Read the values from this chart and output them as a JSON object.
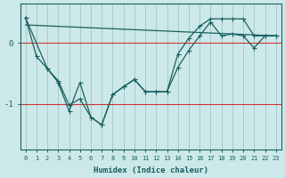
{
  "xlabel": "Humidex (Indice chaleur)",
  "background_color": "#cce8e8",
  "grid_color": "#a8cccc",
  "line_color": "#1a6060",
  "x_ticks": [
    0,
    1,
    2,
    3,
    4,
    5,
    6,
    7,
    8,
    9,
    10,
    11,
    12,
    13,
    14,
    15,
    16,
    17,
    18,
    19,
    20,
    21,
    22,
    23
  ],
  "y_ticks": [
    0,
    -1
  ],
  "ylim": [
    -1.75,
    0.65
  ],
  "xlim": [
    -0.5,
    23.5
  ],
  "line1_x": [
    0,
    1,
    2,
    3,
    4,
    5,
    6,
    7,
    8,
    9,
    10,
    11,
    12,
    13,
    14,
    15,
    16,
    17,
    18,
    19,
    20,
    21,
    22,
    23
  ],
  "line1_y": [
    0.42,
    -0.22,
    -0.42,
    -0.62,
    -1.02,
    -0.92,
    -1.22,
    -1.35,
    -0.85,
    -0.72,
    -0.6,
    -0.8,
    -0.8,
    -0.8,
    -0.4,
    -0.12,
    0.12,
    0.35,
    0.12,
    0.15,
    0.12,
    -0.08,
    0.12,
    0.12
  ],
  "line2_x": [
    0,
    2,
    3,
    4,
    5,
    6,
    7,
    8,
    9,
    10,
    11,
    12,
    13,
    14,
    15,
    16,
    17,
    18,
    19,
    20,
    21,
    22,
    23
  ],
  "line2_y": [
    0.42,
    -0.42,
    -0.65,
    -1.12,
    -0.65,
    -1.22,
    -1.35,
    -0.85,
    -0.72,
    -0.6,
    -0.8,
    -0.8,
    -0.8,
    -0.18,
    0.08,
    0.28,
    0.4,
    0.4,
    0.4,
    0.4,
    0.12,
    0.12,
    0.12
  ],
  "line3_x": [
    0,
    23
  ],
  "line3_y": [
    0.3,
    0.12
  ]
}
